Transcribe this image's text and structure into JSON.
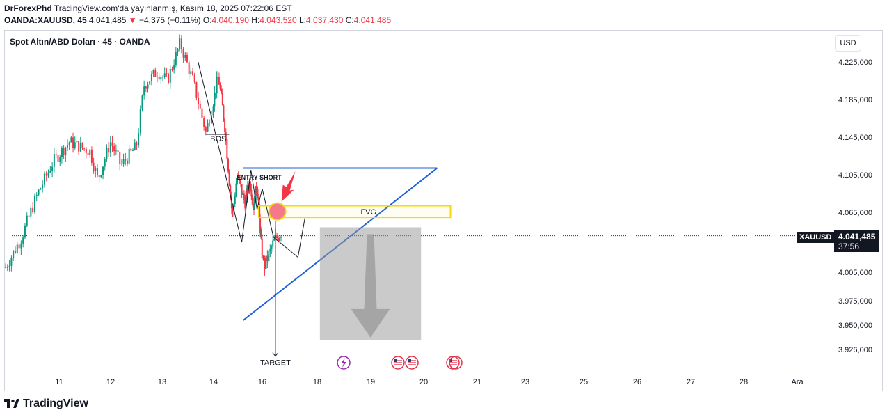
{
  "header": {
    "author": "DrForexPhd",
    "published_text": "TradingView.com'da yayınlanmış, Kasım 18, 2025 07:22:06 EST",
    "symbol_line": "OANDA:XAUUSD, 45",
    "last_price": "4.041,485",
    "change_arrow": "▼",
    "change": "−4,375 (−0.11%)",
    "open_label": "O:",
    "open": "4.040,190",
    "high_label": "H:",
    "high": "4.043,520",
    "low_label": "L:",
    "low": "4.037,430",
    "close_label": "C:",
    "close": "4.041,485"
  },
  "legend": {
    "title": "Spot Altın/ABD Doları · 45 · OANDA"
  },
  "price_scale": {
    "currency": "USD"
  },
  "badges": {
    "symbol": "XAUUSD",
    "price": "4.041,485",
    "countdown": "37:56"
  },
  "colors": {
    "up": "#089981",
    "down": "#f23645",
    "trendline": "#1e63d6",
    "fvg": "#f5d90a",
    "entry_arrow": "#f23645",
    "target_box": "#a8a8a8",
    "event_red": "#e0334a",
    "event_purple": "#9c27b0"
  },
  "chart_data": {
    "type": "candlestick",
    "title": "Spot Altın/ABD Doları · 45 · OANDA",
    "y_ticks": [
      {
        "value": 4225,
        "label": "4.225,000"
      },
      {
        "value": 4185,
        "label": "4.185,000"
      },
      {
        "value": 4145,
        "label": "4.145,000"
      },
      {
        "value": 4105,
        "label": "4.105,000"
      },
      {
        "value": 4065,
        "label": "4.065,000"
      },
      {
        "value": 4005,
        "label": "4.005,000"
      },
      {
        "value": 3975,
        "label": "3.975,000"
      },
      {
        "value": 3950,
        "label": "3.950,000"
      },
      {
        "value": 3926,
        "label": "3.926,000"
      }
    ],
    "x_ticks": [
      {
        "day": 11,
        "label": "11"
      },
      {
        "day": 12,
        "label": "12"
      },
      {
        "day": 13,
        "label": "13"
      },
      {
        "day": 14,
        "label": "14"
      },
      {
        "day": 16,
        "label": "16"
      },
      {
        "day": 18,
        "label": "18"
      },
      {
        "day": 19,
        "label": "19"
      },
      {
        "day": 20,
        "label": "20"
      },
      {
        "day": 21,
        "label": "21"
      },
      {
        "day": 23,
        "label": "23"
      },
      {
        "day": 25,
        "label": "25"
      },
      {
        "day": 26,
        "label": "26"
      },
      {
        "day": 27,
        "label": "27"
      },
      {
        "day": 28,
        "label": "28"
      },
      {
        "day": 30,
        "label": "Ara"
      }
    ],
    "last_price": 4041.485,
    "price_path": [
      [
        10.0,
        4010
      ],
      [
        10.3,
        4040
      ],
      [
        10.6,
        4085
      ],
      [
        10.9,
        4120
      ],
      [
        11.2,
        4140
      ],
      [
        11.6,
        4130
      ],
      [
        11.75,
        4100
      ],
      [
        12.0,
        4140
      ],
      [
        12.2,
        4115
      ],
      [
        12.5,
        4135
      ],
      [
        12.65,
        4200
      ],
      [
        12.9,
        4215
      ],
      [
        13.1,
        4205
      ],
      [
        13.35,
        4245
      ],
      [
        13.6,
        4205
      ],
      [
        13.85,
        4150
      ],
      [
        14.0,
        4185
      ],
      [
        14.15,
        4210
      ],
      [
        14.35,
        4160
      ],
      [
        14.5,
        4100
      ],
      [
        14.6,
        4060
      ],
      [
        14.75,
        4105
      ],
      [
        15.0,
        4075
      ],
      [
        15.3,
        4100
      ],
      [
        15.5,
        4070
      ],
      [
        15.7,
        4095
      ],
      [
        15.9,
        4045
      ],
      [
        16.05,
        4010
      ],
      [
        16.3,
        4035
      ],
      [
        16.5,
        4045
      ]
    ],
    "annotations": {
      "bos_label": "BOS",
      "entry_label": "ENTRY SHORT",
      "fvg_label": "FVG",
      "target_label": "TARGET",
      "fvg_zone": {
        "from_day": 15.8,
        "to_day": 20.5,
        "low": 4060,
        "high": 4072
      },
      "bos_level": 4148,
      "entry_point": {
        "day": 16.4,
        "price": 4066
      },
      "target_price": 3940,
      "trend_upper": [
        [
          14.95,
          4112
        ],
        [
          20.25,
          4112
        ]
      ],
      "trend_lower": [
        [
          14.95,
          3955
        ],
        [
          20.25,
          4112
        ]
      ],
      "swing_path": [
        [
          13.7,
          4225
        ],
        [
          14.9,
          4035
        ],
        [
          15.35,
          4110
        ],
        [
          15.7,
          4068
        ],
        [
          16.0,
          4090
        ],
        [
          16.3,
          4040
        ],
        [
          16.95,
          4020
        ],
        [
          17.3,
          4060
        ]
      ]
    }
  }
}
